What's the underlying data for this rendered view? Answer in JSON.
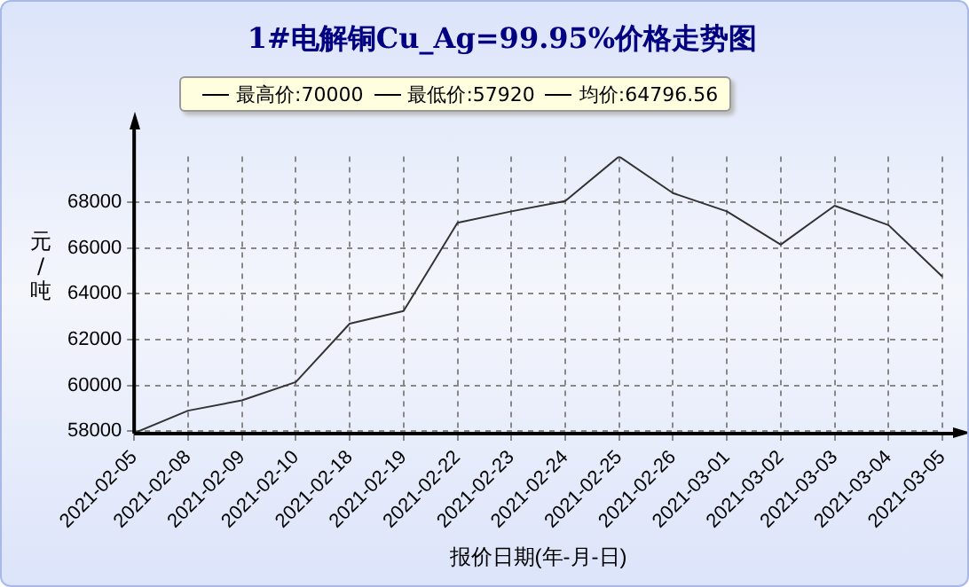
{
  "chart_data": {
    "type": "line",
    "title": "1#电解铜Cu_Ag=99.95%价格走势图",
    "xlabel": "报价日期(年-月-日)",
    "ylabel": "元/吨",
    "annotations": [
      "最高价:70000",
      "最低价:57920",
      "均价:64796.56"
    ],
    "categories": [
      "2021-02-05",
      "2021-02-08",
      "2021-02-09",
      "2021-02-10",
      "2021-02-18",
      "2021-02-19",
      "2021-02-22",
      "2021-02-23",
      "2021-02-24",
      "2021-02-25",
      "2021-02-26",
      "2021-03-01",
      "2021-03-02",
      "2021-03-03",
      "2021-03-04",
      "2021-03-05"
    ],
    "series": [
      {
        "color": "#333333",
        "values": [
          57920,
          58900,
          59350,
          60150,
          62700,
          63250,
          67100,
          67600,
          68050,
          70000,
          68400,
          67600,
          66150,
          67850,
          67000,
          64750
        ]
      }
    ],
    "ylim": [
      57900,
      70000
    ],
    "yticks": [
      58000,
      60000,
      62000,
      64000,
      66000,
      68000
    ],
    "grid": true,
    "legend": false,
    "marker": "none",
    "line_style": "solid"
  }
}
